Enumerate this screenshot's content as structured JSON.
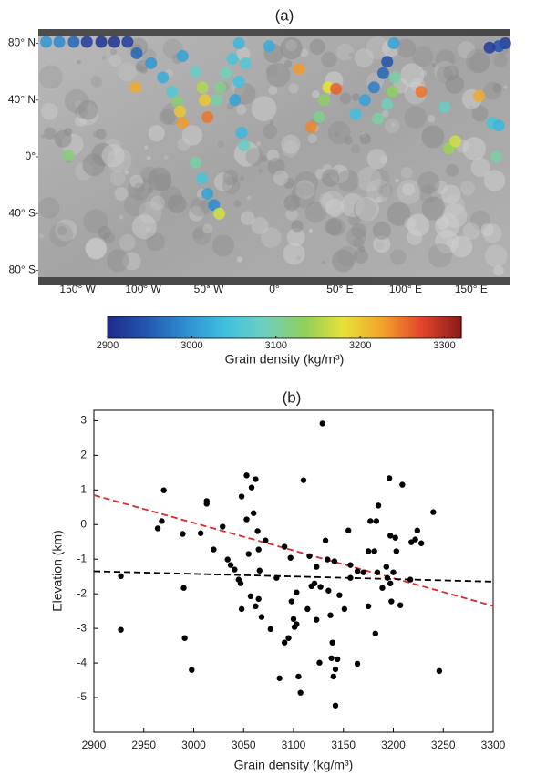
{
  "chart_data": [
    {
      "type": "map",
      "title": "(a)",
      "xlim": [
        -180,
        180
      ],
      "ylim": [
        -90,
        90
      ],
      "xticks": [
        {
          "value": -150,
          "label": "150° W"
        },
        {
          "value": -100,
          "label": "100° W"
        },
        {
          "value": -50,
          "label": "50° W"
        },
        {
          "value": 0,
          "label": "0°"
        },
        {
          "value": 50,
          "label": "50° E"
        },
        {
          "value": 100,
          "label": "100° E"
        },
        {
          "value": 150,
          "label": "150° E"
        }
      ],
      "yticks": [
        {
          "value": 80,
          "label": "80° N"
        },
        {
          "value": 40,
          "label": "40° N"
        },
        {
          "value": 0,
          "label": "0°"
        },
        {
          "value": -40,
          "label": "40° S"
        },
        {
          "value": -80,
          "label": "80° S"
        }
      ],
      "x": [
        -174,
        -164,
        -153,
        -143,
        -132,
        -122,
        -112,
        -105,
        -94,
        -85,
        -78,
        -74,
        -72,
        -70,
        -70,
        -60,
        -55,
        -53,
        -51,
        -106,
        -27,
        -32,
        -37,
        -41,
        -44,
        -22,
        -27,
        -30,
        -60,
        -55,
        -51,
        -46,
        -42,
        -157,
        -25,
        -23,
        -4,
        19,
        28,
        34,
        38,
        41,
        47,
        62,
        69,
        76,
        83,
        86,
        79,
        86,
        90,
        92,
        91,
        112,
        130,
        133,
        138,
        156,
        166,
        171,
        169,
        176,
        171,
        164
      ],
      "y": [
        81,
        81,
        81,
        81,
        81,
        81,
        81,
        73,
        66,
        56,
        46,
        39,
        32,
        24,
        71,
        60,
        49,
        40,
        28,
        49,
        80,
        69,
        59,
        49,
        40,
        66,
        53,
        40,
        -4,
        -15,
        -26,
        -34,
        -40,
        1,
        17,
        8,
        78,
        62,
        21,
        28,
        40,
        49,
        48,
        30,
        40,
        49,
        59,
        67,
        27,
        37,
        46,
        56,
        80,
        46,
        35,
        6,
        11,
        43,
        24,
        22,
        0,
        80,
        78,
        77
      ],
      "values": [
        3000,
        2990,
        2960,
        2920,
        2910,
        2910,
        2920,
        2960,
        3000,
        3020,
        3060,
        3120,
        3200,
        3230,
        3010,
        3080,
        3150,
        3200,
        3250,
        3220,
        3030,
        3050,
        3090,
        3110,
        3100,
        3060,
        3040,
        3010,
        3100,
        3050,
        3010,
        2990,
        3170,
        3120,
        3030,
        3080,
        3020,
        3230,
        3240,
        3110,
        3130,
        3180,
        3260,
        3040,
        3010,
        2980,
        2960,
        2940,
        3100,
        3090,
        3130,
        3100,
        3010,
        3250,
        3080,
        3140,
        3170,
        3220,
        3050,
        3030,
        3100,
        2920,
        2940,
        2920
      ],
      "colormap": [
        "#1f2a8a",
        "#2457b0",
        "#2f8fd0",
        "#3fc0e0",
        "#6fd0c0",
        "#8fcf5a",
        "#e6e23a",
        "#f2a22c",
        "#e2452a",
        "#8a1a1a"
      ],
      "colorbar": {
        "label": "Grain density (kg/m³)",
        "lim": [
          2900,
          3320
        ],
        "ticks": [
          2900,
          3000,
          3100,
          3200,
          3300
        ]
      }
    },
    {
      "type": "scatter",
      "title": "(b)",
      "x_label": "Grain density (kg/m³)",
      "y_label": "Elevation (km)",
      "xlim": [
        2900,
        3300
      ],
      "ylim": [
        -6,
        3.3
      ],
      "xticks": [
        2900,
        2950,
        3000,
        3050,
        3100,
        3150,
        3200,
        3250,
        3300
      ],
      "yticks": [
        -5,
        -4,
        -3,
        -2,
        -1,
        0,
        1,
        2,
        3
      ],
      "color": "#000000",
      "x": [
        2927,
        2927,
        2970,
        2964,
        2968,
        2989,
        2990,
        2991,
        2998,
        3007,
        3013,
        3013,
        3020,
        3029,
        3034,
        3037,
        3041,
        3045,
        3047,
        3048,
        3053,
        3053,
        3055,
        3057,
        3048,
        3058,
        3062,
        3060,
        3064,
        3065,
        3066,
        3065,
        3062,
        3068,
        3072,
        3077,
        3083,
        3086,
        3091,
        3091,
        3095,
        3097,
        3098,
        3100,
        3101,
        3103,
        3103,
        3105,
        3107,
        3110,
        3114,
        3116,
        3118,
        3121,
        3123,
        3123,
        3126,
        3127,
        3129,
        3132,
        3134,
        3135,
        3137,
        3138,
        3139,
        3140,
        3141,
        3142,
        3142,
        3144,
        3146,
        3151,
        3155,
        3157,
        3157,
        3164,
        3164,
        3170,
        3175,
        3175,
        3177,
        3181,
        3182,
        3183,
        3184,
        3185,
        3189,
        3193,
        3194,
        3196,
        3197,
        3197,
        3198,
        3200,
        3202,
        3203,
        3207,
        3209,
        3217,
        3218,
        3222,
        3224,
        3228,
        3240,
        3246
      ],
      "y": [
        -1.49,
        -3.04,
        0.99,
        -0.11,
        0.1,
        -0.27,
        -1.83,
        -3.28,
        -4.2,
        -0.25,
        0.68,
        0.6,
        -0.72,
        -0.06,
        -1.01,
        -1.17,
        -1.3,
        -1.59,
        -1.7,
        0.81,
        1.42,
        0.15,
        -0.85,
        -2.07,
        -2.44,
        1.07,
        1.31,
        0.33,
        -0.19,
        -0.72,
        -1.33,
        -2.15,
        -2.36,
        -2.67,
        -0.46,
        -3.02,
        -1.54,
        -4.44,
        -0.64,
        -3.41,
        -3.28,
        -0.96,
        -2.22,
        -2.73,
        -2.96,
        -2.88,
        -1.96,
        -4.39,
        -4.86,
        1.28,
        -2.44,
        -0.91,
        -1.78,
        -1.7,
        -1.22,
        -2.75,
        -3.99,
        -1.8,
        2.92,
        -0.46,
        -1.01,
        -1.91,
        -2.62,
        -3.86,
        -3.41,
        -4.39,
        -1.06,
        -4.18,
        -5.23,
        -3.89,
        -2.04,
        -2.44,
        -0.17,
        -1.17,
        -1.54,
        -4.02,
        -1.35,
        -1.38,
        -2.36,
        -0.77,
        0.1,
        -0.77,
        -3.15,
        0.1,
        -1.38,
        0.55,
        -1.83,
        -1.22,
        -1.54,
        1.34,
        -0.32,
        -1.7,
        -2.22,
        -1.38,
        -0.38,
        -0.77,
        -2.33,
        1.15,
        -1.59,
        -0.51,
        -0.43,
        -0.17,
        -0.54,
        0.36,
        -4.23
      ],
      "lines": [
        {
          "color": "#e0262a",
          "x": [
            2900,
            3300
          ],
          "y": [
            0.85,
            -2.35
          ]
        },
        {
          "color": "#000000",
          "x": [
            2900,
            3300
          ],
          "y": [
            -1.35,
            -1.65
          ]
        }
      ]
    }
  ]
}
